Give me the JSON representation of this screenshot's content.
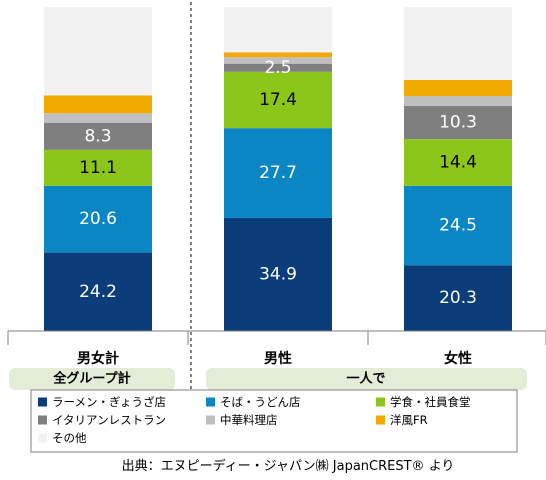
{
  "chart_data": {
    "type": "bar",
    "stacked": true,
    "categories": [
      "男女計",
      "男性",
      "女性"
    ],
    "series": [
      {
        "name": "ラーメン・ぎょうざ店",
        "values": [
          24.2,
          34.9,
          20.3
        ],
        "color": "#0B3D7A",
        "label_color": "#ffffff",
        "show_labels": [
          true,
          true,
          true
        ]
      },
      {
        "name": "そば・うどん店",
        "values": [
          20.6,
          27.7,
          24.5
        ],
        "color": "#0A86C5",
        "label_color": "#ffffff",
        "show_labels": [
          true,
          true,
          true
        ]
      },
      {
        "name": "学食・社員食堂",
        "values": [
          11.1,
          17.4,
          14.4
        ],
        "color": "#8CC61B",
        "label_color": "#000000",
        "show_labels": [
          true,
          true,
          true
        ]
      },
      {
        "name": "イタリアンレストラン",
        "values": [
          8.3,
          2.5,
          10.3
        ],
        "color": "#7F7F7F",
        "label_color": "#ffffff",
        "show_labels": [
          true,
          true,
          true
        ]
      },
      {
        "name": "中華料理店",
        "values": [
          3.0,
          2.0,
          3.0
        ],
        "color": "#BFBFBF",
        "label_color": "#000000",
        "show_labels": [
          false,
          false,
          false
        ]
      },
      {
        "name": "洋風FR",
        "values": [
          5.5,
          1.5,
          5.0
        ],
        "color": "#F2A900",
        "label_color": "#000000",
        "show_labels": [
          false,
          false,
          false
        ]
      },
      {
        "name": "その他",
        "values": [
          27.3,
          14.0,
          22.5
        ],
        "color": "#F2F2F2",
        "label_color": "#000000",
        "show_labels": [
          false,
          false,
          false
        ]
      }
    ],
    "ylim": [
      0,
      100
    ],
    "groups": [
      {
        "label": "全グループ計",
        "categories": [
          "男女計"
        ]
      },
      {
        "label": "一人で",
        "categories": [
          "男性",
          "女性"
        ]
      }
    ],
    "legend_position": "bottom",
    "grid": false
  },
  "source_note": "出典：エヌピーディー・ジャパン㈱ JapanCREST® より",
  "colors": {
    "group_bar_bg": "#E3ECD6",
    "divider": "#595959",
    "axis": "#7F7F7F"
  }
}
